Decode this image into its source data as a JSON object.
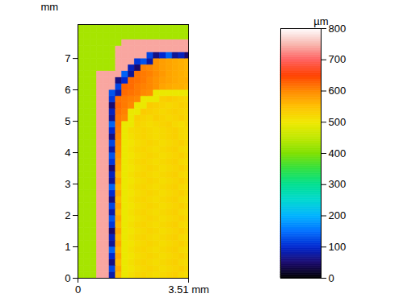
{
  "chart_data": {
    "type": "heatmap",
    "ylabel": "mm",
    "xlim": [
      0,
      3.51
    ],
    "xticks": [
      0,
      {
        "value": 3.51,
        "label": "3.51 mm"
      }
    ],
    "ylim": [
      0,
      8.08
    ],
    "yticks": [
      0,
      1,
      2,
      3,
      4,
      5,
      6,
      7
    ],
    "x": [
      0.1,
      0.3,
      0.5,
      0.7,
      0.9,
      1.1,
      1.3,
      1.5,
      1.7,
      1.9,
      2.1,
      2.3,
      2.5,
      2.7,
      2.9,
      3.1,
      3.3,
      3.5
    ],
    "y": [
      0.1,
      0.3,
      0.5,
      0.7,
      0.9,
      1.1,
      1.3,
      1.5,
      1.7,
      1.9,
      2.1,
      2.3,
      2.5,
      2.7,
      2.9,
      3.1,
      3.3,
      3.5,
      3.7,
      3.9,
      4.1,
      4.3,
      4.5,
      4.7,
      4.9,
      5.1,
      5.3,
      5.5,
      5.7,
      5.9,
      6.1,
      6.3,
      6.5,
      6.7,
      6.9,
      7.1,
      7.3,
      7.5,
      7.7,
      7.9,
      8.1
    ],
    "cells": [
      [
        430,
        430,
        430,
        740,
        740,
        80,
        555,
        495,
        510,
        520,
        525,
        520,
        515,
        520,
        525,
        530,
        520,
        515
      ],
      [
        430,
        430,
        430,
        740,
        740,
        120,
        570,
        495,
        505,
        515,
        520,
        525,
        520,
        515,
        520,
        525,
        530,
        520
      ],
      [
        430,
        430,
        430,
        740,
        740,
        60,
        555,
        495,
        510,
        520,
        525,
        520,
        515,
        520,
        525,
        530,
        520,
        515
      ],
      [
        430,
        430,
        430,
        740,
        740,
        100,
        570,
        495,
        505,
        515,
        520,
        525,
        520,
        515,
        520,
        525,
        530,
        520
      ],
      [
        430,
        430,
        430,
        740,
        740,
        140,
        555,
        495,
        510,
        520,
        525,
        520,
        515,
        520,
        525,
        530,
        520,
        515
      ],
      [
        430,
        430,
        430,
        740,
        740,
        70,
        570,
        495,
        505,
        515,
        520,
        525,
        520,
        515,
        520,
        525,
        530,
        520
      ],
      [
        430,
        430,
        430,
        740,
        740,
        90,
        555,
        495,
        510,
        520,
        525,
        520,
        515,
        520,
        525,
        530,
        520,
        515
      ],
      [
        430,
        430,
        430,
        740,
        740,
        50,
        570,
        495,
        505,
        515,
        520,
        525,
        520,
        515,
        520,
        525,
        530,
        520
      ],
      [
        430,
        430,
        430,
        740,
        740,
        110,
        555,
        495,
        510,
        520,
        525,
        520,
        515,
        520,
        525,
        530,
        520,
        515
      ],
      [
        430,
        430,
        430,
        740,
        740,
        130,
        570,
        495,
        505,
        515,
        520,
        525,
        520,
        515,
        520,
        525,
        530,
        520
      ],
      [
        430,
        430,
        430,
        740,
        740,
        80,
        555,
        495,
        510,
        520,
        525,
        520,
        515,
        520,
        525,
        530,
        520,
        515
      ],
      [
        430,
        430,
        430,
        740,
        740,
        120,
        570,
        495,
        505,
        515,
        520,
        525,
        520,
        515,
        520,
        525,
        530,
        520
      ],
      [
        430,
        430,
        430,
        740,
        740,
        60,
        555,
        495,
        510,
        520,
        525,
        520,
        515,
        520,
        525,
        530,
        520,
        515
      ],
      [
        430,
        430,
        430,
        740,
        740,
        100,
        570,
        495,
        505,
        515,
        520,
        525,
        520,
        515,
        520,
        525,
        530,
        520
      ],
      [
        430,
        430,
        430,
        740,
        740,
        140,
        555,
        495,
        510,
        520,
        525,
        520,
        515,
        520,
        525,
        530,
        520,
        515
      ],
      [
        430,
        430,
        430,
        740,
        740,
        70,
        570,
        495,
        505,
        515,
        520,
        525,
        520,
        515,
        520,
        525,
        530,
        520
      ],
      [
        430,
        430,
        430,
        740,
        740,
        90,
        555,
        495,
        510,
        520,
        525,
        520,
        515,
        520,
        525,
        530,
        520,
        515
      ],
      [
        430,
        430,
        430,
        740,
        740,
        50,
        570,
        495,
        505,
        515,
        520,
        525,
        520,
        515,
        520,
        525,
        530,
        520
      ],
      [
        430,
        430,
        430,
        740,
        740,
        110,
        575,
        495,
        510,
        520,
        525,
        520,
        515,
        520,
        525,
        530,
        520,
        515
      ],
      [
        430,
        430,
        430,
        740,
        740,
        130,
        585,
        495,
        505,
        515,
        520,
        525,
        520,
        515,
        520,
        525,
        530,
        520
      ],
      [
        430,
        430,
        430,
        740,
        740,
        80,
        590,
        495,
        510,
        520,
        525,
        520,
        515,
        520,
        525,
        530,
        520,
        515
      ],
      [
        430,
        430,
        430,
        740,
        740,
        120,
        595,
        495,
        505,
        515,
        520,
        525,
        520,
        515,
        520,
        525,
        530,
        520
      ],
      [
        430,
        430,
        430,
        740,
        740,
        60,
        600,
        495,
        510,
        520,
        525,
        520,
        515,
        520,
        525,
        530,
        520,
        515
      ],
      [
        430,
        430,
        430,
        740,
        740,
        100,
        605,
        495,
        515,
        520,
        525,
        520,
        515,
        520,
        525,
        530,
        520,
        515
      ],
      [
        430,
        430,
        430,
        740,
        740,
        140,
        610,
        495,
        495,
        525,
        520,
        515,
        520,
        525,
        530,
        520,
        515,
        520
      ],
      [
        430,
        430,
        430,
        740,
        740,
        70,
        610,
        600,
        495,
        530,
        525,
        520,
        530,
        525,
        520,
        525,
        530,
        520
      ],
      [
        430,
        430,
        430,
        740,
        740,
        90,
        615,
        605,
        495,
        495,
        535,
        530,
        525,
        520,
        525,
        530,
        525,
        520
      ],
      [
        430,
        430,
        430,
        740,
        740,
        50,
        620,
        610,
        600,
        495,
        495,
        535,
        530,
        525,
        520,
        525,
        530,
        525
      ],
      [
        430,
        430,
        430,
        740,
        740,
        110,
        615,
        610,
        605,
        600,
        495,
        495,
        495,
        530,
        535,
        530,
        525,
        520
      ],
      [
        430,
        430,
        430,
        740,
        740,
        130,
        80,
        620,
        615,
        610,
        600,
        595,
        495,
        495,
        495,
        495,
        495,
        495
      ],
      [
        430,
        430,
        430,
        740,
        740,
        740,
        120,
        625,
        620,
        610,
        605,
        600,
        590,
        575,
        570,
        565,
        565,
        560
      ],
      [
        430,
        430,
        430,
        740,
        740,
        740,
        60,
        100,
        620,
        615,
        610,
        600,
        590,
        580,
        575,
        570,
        565,
        565
      ],
      [
        430,
        430,
        430,
        740,
        740,
        740,
        740,
        140,
        70,
        615,
        610,
        605,
        595,
        585,
        575,
        570,
        565,
        560
      ],
      [
        430,
        430,
        430,
        430,
        430,
        430,
        740,
        740,
        90,
        50,
        605,
        600,
        590,
        580,
        575,
        570,
        565,
        560
      ],
      [
        430,
        430,
        430,
        430,
        430,
        430,
        740,
        740,
        740,
        110,
        130,
        80,
        590,
        580,
        575,
        570,
        565,
        560
      ],
      [
        430,
        430,
        430,
        430,
        430,
        430,
        740,
        740,
        740,
        740,
        740,
        120,
        60,
        100,
        140,
        70,
        90,
        50
      ],
      [
        430,
        430,
        430,
        430,
        430,
        430,
        740,
        740,
        740,
        740,
        740,
        740,
        740,
        740,
        740,
        740,
        740,
        740
      ],
      [
        430,
        430,
        430,
        430,
        430,
        430,
        430,
        740,
        740,
        740,
        740,
        740,
        740,
        740,
        740,
        740,
        740,
        740
      ],
      [
        430,
        430,
        430,
        430,
        430,
        430,
        430,
        430,
        430,
        430,
        430,
        430,
        430,
        430,
        430,
        430,
        430,
        430
      ],
      [
        430,
        430,
        430,
        430,
        430,
        430,
        430,
        430,
        430,
        430,
        430,
        430,
        430,
        430,
        430,
        430,
        430,
        430
      ],
      [
        430,
        430,
        430,
        430,
        430,
        430,
        430,
        430,
        430,
        430,
        430,
        430,
        430,
        430,
        430,
        430,
        430,
        430
      ]
    ],
    "colorbar": {
      "label": "µm",
      "range": [
        0,
        800
      ],
      "ticks": [
        0,
        100,
        200,
        300,
        400,
        500,
        600,
        700,
        800
      ],
      "colors": [
        "#000000",
        "#1a0a6e",
        "#0028d0",
        "#0070ff",
        "#00b4ff",
        "#00d8d0",
        "#00e090",
        "#30e040",
        "#80e000",
        "#c0e800",
        "#f0e800",
        "#ffc000",
        "#ff8800",
        "#ff4000",
        "#ff6060",
        "#f8b8b0",
        "#ffffff"
      ]
    }
  }
}
